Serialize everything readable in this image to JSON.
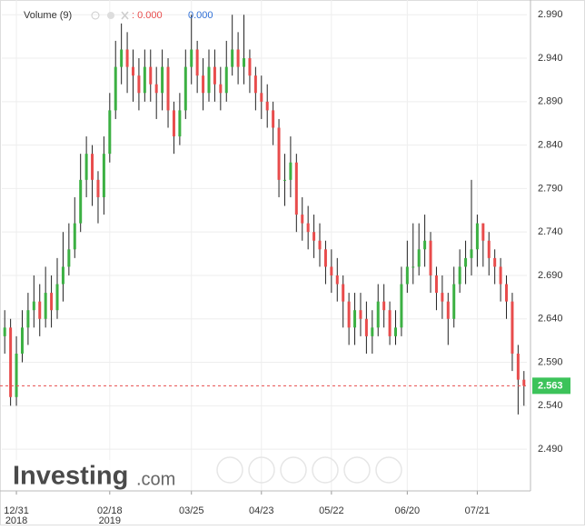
{
  "chart_data": {
    "type": "candlestick",
    "legend": {
      "name": "Volume (9)",
      "value_a": ": 0.000",
      "value_b": "0.000"
    },
    "logo": {
      "name": "Investing",
      "suffix": ".com"
    },
    "up_color": "#3cb043",
    "down_color": "#e84c4c",
    "wick_color": "#222222",
    "open": [
      2.62,
      2.63,
      2.55,
      2.6,
      2.63,
      2.65,
      2.66,
      2.64,
      2.67,
      2.65,
      2.68,
      2.7,
      2.72,
      2.75,
      2.8,
      2.83,
      2.8,
      2.78,
      2.83,
      2.88,
      2.93,
      2.95,
      2.93,
      2.92,
      2.9,
      2.93,
      2.91,
      2.9,
      2.93,
      2.88,
      2.85,
      2.88,
      2.93,
      2.95,
      2.92,
      2.9,
      2.93,
      2.91,
      2.9,
      2.93,
      2.95,
      2.93,
      2.94,
      2.92,
      2.9,
      2.89,
      2.88,
      2.86,
      2.8,
      2.8,
      2.82,
      2.76,
      2.75,
      2.74,
      2.73,
      2.72,
      2.7,
      2.69,
      2.68,
      2.66,
      2.63,
      2.65,
      2.64,
      2.62,
      2.63,
      2.66,
      2.65,
      2.62,
      2.63,
      2.68,
      2.7,
      2.7,
      2.72,
      2.73,
      2.69,
      2.67,
      2.66,
      2.64,
      2.68,
      2.7,
      2.71,
      2.72,
      2.75,
      2.73,
      2.71,
      2.7,
      2.68,
      2.66,
      2.6,
      2.57
    ],
    "high": [
      2.65,
      2.64,
      2.62,
      2.65,
      2.67,
      2.69,
      2.68,
      2.7,
      2.69,
      2.71,
      2.74,
      2.75,
      2.78,
      2.83,
      2.85,
      2.84,
      2.81,
      2.85,
      2.9,
      2.96,
      2.98,
      2.97,
      2.95,
      2.94,
      2.95,
      2.95,
      2.93,
      2.95,
      2.94,
      2.89,
      2.9,
      2.95,
      2.99,
      2.96,
      2.94,
      2.95,
      2.95,
      2.93,
      2.96,
      2.99,
      2.97,
      2.99,
      2.95,
      2.93,
      2.92,
      2.91,
      2.89,
      2.87,
      2.83,
      2.85,
      2.83,
      2.78,
      2.77,
      2.76,
      2.75,
      2.73,
      2.72,
      2.71,
      2.69,
      2.67,
      2.67,
      2.67,
      2.66,
      2.65,
      2.68,
      2.68,
      2.66,
      2.65,
      2.7,
      2.73,
      2.75,
      2.75,
      2.76,
      2.74,
      2.7,
      2.69,
      2.67,
      2.7,
      2.72,
      2.73,
      2.8,
      2.76,
      2.75,
      2.74,
      2.72,
      2.71,
      2.69,
      2.67,
      2.61,
      2.58
    ],
    "low": [
      2.6,
      2.54,
      2.54,
      2.59,
      2.61,
      2.63,
      2.62,
      2.63,
      2.63,
      2.64,
      2.66,
      2.69,
      2.71,
      2.74,
      2.78,
      2.77,
      2.75,
      2.76,
      2.82,
      2.87,
      2.91,
      2.9,
      2.89,
      2.88,
      2.89,
      2.89,
      2.87,
      2.88,
      2.86,
      2.83,
      2.84,
      2.87,
      2.91,
      2.9,
      2.88,
      2.89,
      2.89,
      2.88,
      2.89,
      2.92,
      2.91,
      2.91,
      2.9,
      2.88,
      2.87,
      2.86,
      2.84,
      2.78,
      2.77,
      2.78,
      2.74,
      2.73,
      2.72,
      2.71,
      2.7,
      2.68,
      2.67,
      2.66,
      2.63,
      2.61,
      2.61,
      2.62,
      2.6,
      2.6,
      2.62,
      2.63,
      2.61,
      2.61,
      2.62,
      2.67,
      2.68,
      2.69,
      2.7,
      2.67,
      2.65,
      2.64,
      2.61,
      2.63,
      2.67,
      2.68,
      2.69,
      2.7,
      2.7,
      2.69,
      2.68,
      2.66,
      2.64,
      2.58,
      2.53,
      2.54
    ],
    "close": [
      2.63,
      2.55,
      2.6,
      2.63,
      2.65,
      2.66,
      2.64,
      2.67,
      2.65,
      2.68,
      2.7,
      2.72,
      2.75,
      2.8,
      2.83,
      2.8,
      2.78,
      2.83,
      2.88,
      2.93,
      2.95,
      2.93,
      2.92,
      2.9,
      2.93,
      2.91,
      2.9,
      2.93,
      2.88,
      2.85,
      2.88,
      2.93,
      2.95,
      2.92,
      2.9,
      2.93,
      2.91,
      2.9,
      2.93,
      2.95,
      2.93,
      2.94,
      2.92,
      2.9,
      2.89,
      2.88,
      2.86,
      2.8,
      2.8,
      2.82,
      2.76,
      2.75,
      2.74,
      2.73,
      2.72,
      2.7,
      2.69,
      2.68,
      2.66,
      2.63,
      2.65,
      2.64,
      2.62,
      2.63,
      2.66,
      2.65,
      2.62,
      2.63,
      2.68,
      2.7,
      2.7,
      2.72,
      2.73,
      2.69,
      2.67,
      2.66,
      2.64,
      2.68,
      2.7,
      2.71,
      2.72,
      2.75,
      2.73,
      2.71,
      2.7,
      2.68,
      2.66,
      2.6,
      2.57,
      2.563
    ],
    "xticks": [
      {
        "value": 2,
        "label": "12/31",
        "sublabel": "2018"
      },
      {
        "value": 18,
        "label": "02/18",
        "sublabel": "2019"
      },
      {
        "value": 32,
        "label": "03/25"
      },
      {
        "value": 44,
        "label": "04/23"
      },
      {
        "value": 56,
        "label": "05/22"
      },
      {
        "value": 69,
        "label": "06/20"
      },
      {
        "value": 81,
        "label": "07/21"
      }
    ],
    "ylim": [
      2.442,
      3.007
    ],
    "yticks": [
      {
        "value": 2.49,
        "label": "2.490"
      },
      {
        "value": 2.54,
        "label": "2.540"
      },
      {
        "value": 2.59,
        "label": "2.590"
      },
      {
        "value": 2.64,
        "label": "2.640"
      },
      {
        "value": 2.69,
        "label": "2.690"
      },
      {
        "value": 2.74,
        "label": "2.740"
      },
      {
        "value": 2.79,
        "label": "2.790"
      },
      {
        "value": 2.84,
        "label": "2.840"
      },
      {
        "value": 2.89,
        "label": "2.890"
      },
      {
        "value": 2.94,
        "label": "2.940"
      },
      {
        "value": 2.99,
        "label": "2.990"
      }
    ],
    "last_price": {
      "value": 2.563,
      "label": "2.563",
      "color": "#3cc35a",
      "line_color": "#e84c4c"
    },
    "grid": true
  }
}
